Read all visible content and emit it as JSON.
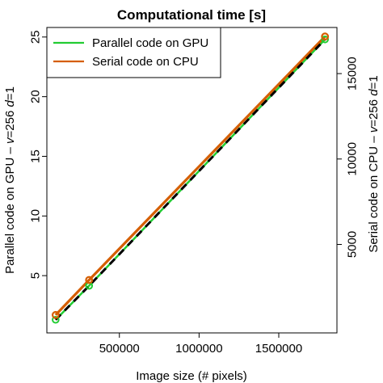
{
  "chart_data": {
    "type": "line",
    "title": "Computational time [s]",
    "xlabel": "Image size (# pixels)",
    "ylabel_left": "Parallel code on GPU – v=256 d=1",
    "ylabel_right": "Serial code on CPU – v=256 d=1",
    "xlim": [
      45000,
      1865000
    ],
    "ylim_left": [
      0.2,
      25.8
    ],
    "ylim_right": [
      -180,
      17700
    ],
    "x_ticks": [
      500000,
      1000000,
      1500000
    ],
    "x_tick_labels": [
      "500000",
      "1000000",
      "1500000"
    ],
    "y_left_ticks": [
      5,
      10,
      15,
      20,
      25
    ],
    "y_left_tick_labels": [
      "5",
      "10",
      "15",
      "20",
      "25"
    ],
    "y_right_ticks": [
      5000,
      10000,
      15000
    ],
    "y_right_tick_labels": [
      "5000",
      "10000",
      "15000"
    ],
    "legend_position": "top-left",
    "series": [
      {
        "name": "Parallel code on GPU",
        "axis": "left",
        "color": "#22cc33",
        "x": [
          100000,
          310000,
          1790000
        ],
        "y": [
          1.3,
          4.15,
          24.8
        ]
      },
      {
        "name": "Serial code on CPU",
        "axis": "right",
        "color": "#d55e00",
        "x": [
          100000,
          310000,
          1790000
        ],
        "y": [
          870,
          2920,
          17170
        ]
      }
    ]
  }
}
